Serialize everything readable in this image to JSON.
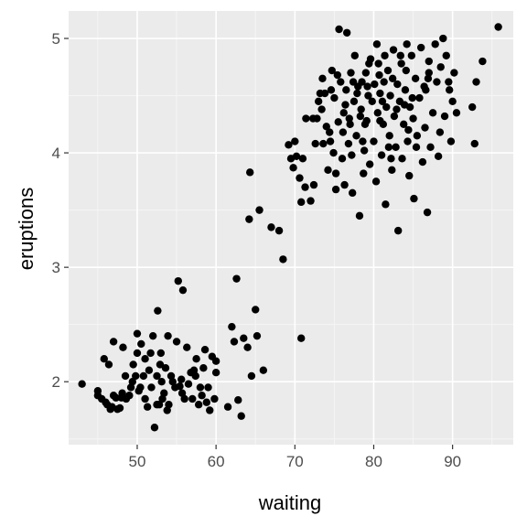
{
  "chart_data": {
    "type": "scatter",
    "xlabel": "waiting",
    "ylabel": "eruptions",
    "xlim": [
      41.3,
      97.7
    ],
    "ylim": [
      1.45,
      5.24
    ],
    "x_ticks": [
      50,
      60,
      70,
      80,
      90
    ],
    "x_tick_labels": [
      "50",
      "60",
      "70",
      "80",
      "90"
    ],
    "y_ticks": [
      2,
      3,
      4,
      5
    ],
    "y_tick_labels": [
      "2",
      "3",
      "4",
      "5"
    ],
    "grid": true,
    "legend": "none",
    "colors": {
      "panel_background": "#ebebeb",
      "grid_major": "#ffffff",
      "grid_minor": "#f5f5f5",
      "point": "#000000",
      "tick_mark": "#333333"
    },
    "points": [
      [
        43,
        1.98
      ],
      [
        45,
        1.92
      ],
      [
        45,
        1.88
      ],
      [
        45.5,
        1.85
      ],
      [
        45.8,
        2.2
      ],
      [
        46,
        1.82
      ],
      [
        46.2,
        1.8
      ],
      [
        46.4,
        2.15
      ],
      [
        46.8,
        1.78
      ],
      [
        47,
        1.88
      ],
      [
        47,
        2.35
      ],
      [
        47.3,
        1.86
      ],
      [
        47.5,
        1.76
      ],
      [
        47.8,
        1.77
      ],
      [
        48,
        1.86
      ],
      [
        48.2,
        2.3
      ],
      [
        48.5,
        2.05
      ],
      [
        48.6,
        1.85
      ],
      [
        49,
        1.88
      ],
      [
        49.2,
        1.95
      ],
      [
        49.5,
        2.15
      ],
      [
        49.8,
        2.05
      ],
      [
        50,
        2.25
      ],
      [
        50,
        2.42
      ],
      [
        50.2,
        1.92
      ],
      [
        50.5,
        2.33
      ],
      [
        50.8,
        2.05
      ],
      [
        51,
        1.85
      ],
      [
        51,
        2.2
      ],
      [
        51.3,
        1.78
      ],
      [
        51.5,
        2.1
      ],
      [
        51.8,
        1.95
      ],
      [
        52,
        2.4
      ],
      [
        52.2,
        1.6
      ],
      [
        52.5,
        1.8
      ],
      [
        52.5,
        2.05
      ],
      [
        52.6,
        2.62
      ],
      [
        52.8,
        1.8
      ],
      [
        53,
        2.25
      ],
      [
        53.2,
        1.85
      ],
      [
        53.4,
        1.9
      ],
      [
        53.6,
        2.12
      ],
      [
        53.8,
        1.75
      ],
      [
        53.9,
        2.4
      ],
      [
        54,
        1.8
      ],
      [
        54.3,
        2.05
      ],
      [
        54.5,
        2.0
      ],
      [
        54.8,
        1.95
      ],
      [
        55,
        2.35
      ],
      [
        55.2,
        2.88
      ],
      [
        55.4,
        1.96
      ],
      [
        55.6,
        2.02
      ],
      [
        55.8,
        2.8
      ],
      [
        56,
        1.85
      ],
      [
        56.3,
        2.3
      ],
      [
        56.5,
        1.98
      ],
      [
        56.8,
        2.08
      ],
      [
        57,
        1.85
      ],
      [
        57.2,
        2.1
      ],
      [
        57.5,
        2.2
      ],
      [
        57.8,
        1.8
      ],
      [
        58,
        1.95
      ],
      [
        58.2,
        1.88
      ],
      [
        58.6,
        2.28
      ],
      [
        58.8,
        1.82
      ],
      [
        59,
        1.95
      ],
      [
        59.2,
        1.75
      ],
      [
        59.5,
        2.22
      ],
      [
        59.8,
        1.85
      ],
      [
        60,
        2.08
      ],
      [
        60,
        2.18
      ],
      [
        61.5,
        1.78
      ],
      [
        62,
        2.48
      ],
      [
        62.3,
        2.35
      ],
      [
        62.6,
        2.9
      ],
      [
        62.8,
        1.84
      ],
      [
        63.2,
        1.7
      ],
      [
        63.5,
        2.38
      ],
      [
        64,
        2.3
      ],
      [
        64.5,
        2.05
      ],
      [
        65,
        2.63
      ],
      [
        65.2,
        2.4
      ],
      [
        66,
        2.1
      ],
      [
        70.8,
        2.38
      ],
      [
        68.5,
        3.07
      ],
      [
        67,
        3.35
      ],
      [
        65.5,
        3.5
      ],
      [
        64.3,
        3.83
      ],
      [
        64.2,
        3.42
      ],
      [
        68,
        3.32
      ],
      [
        69.2,
        4.07
      ],
      [
        69.5,
        3.95
      ],
      [
        69.8,
        3.87
      ],
      [
        70,
        4.1
      ],
      [
        70.2,
        3.97
      ],
      [
        70.6,
        3.78
      ],
      [
        71,
        3.95
      ],
      [
        71.3,
        3.7
      ],
      [
        70.8,
        3.57
      ],
      [
        72,
        3.58
      ],
      [
        72.3,
        4.3
      ],
      [
        72.6,
        4.08
      ],
      [
        72.8,
        4.3
      ],
      [
        73,
        4.45
      ],
      [
        73.2,
        4.52
      ],
      [
        73.5,
        4.65
      ],
      [
        73.8,
        4.52
      ],
      [
        74,
        4.23
      ],
      [
        74.2,
        3.85
      ],
      [
        74.5,
        4.1
      ],
      [
        74.7,
        4.72
      ],
      [
        74.9,
        4.0
      ],
      [
        75,
        4.48
      ],
      [
        75.2,
        3.82
      ],
      [
        75.5,
        4.27
      ],
      [
        75.6,
        5.08
      ],
      [
        75.8,
        4.62
      ],
      [
        76,
        3.95
      ],
      [
        76.2,
        4.35
      ],
      [
        76.3,
        3.72
      ],
      [
        76.5,
        4.55
      ],
      [
        76.6,
        5.05
      ],
      [
        76.8,
        4.08
      ],
      [
        77,
        4.25
      ],
      [
        77.1,
        4.7
      ],
      [
        77.3,
        3.65
      ],
      [
        77.5,
        4.45
      ],
      [
        77.6,
        4.85
      ],
      [
        77.8,
        4.15
      ],
      [
        78,
        4.58
      ],
      [
        78.2,
        3.45
      ],
      [
        78.3,
        4.32
      ],
      [
        78.5,
        4.62
      ],
      [
        78.7,
        3.82
      ],
      [
        78.8,
        4.02
      ],
      [
        79,
        4.7
      ],
      [
        79.1,
        4.28
      ],
      [
        79.3,
        4.5
      ],
      [
        79.5,
        3.9
      ],
      [
        79.6,
        4.82
      ],
      [
        79.8,
        4.45
      ],
      [
        80,
        4.1
      ],
      [
        80.1,
        4.6
      ],
      [
        80.3,
        3.75
      ],
      [
        80.5,
        4.35
      ],
      [
        80.6,
        4.78
      ],
      [
        80.8,
        4.52
      ],
      [
        81,
        3.98
      ],
      [
        81.2,
        4.25
      ],
      [
        81.3,
        4.62
      ],
      [
        81.5,
        3.55
      ],
      [
        81.6,
        4.4
      ],
      [
        81.8,
        4.72
      ],
      [
        82,
        4.15
      ],
      [
        82.1,
        4.5
      ],
      [
        82.3,
        3.85
      ],
      [
        82.5,
        4.9
      ],
      [
        82.6,
        4.32
      ],
      [
        82.8,
        4.05
      ],
      [
        83,
        4.6
      ],
      [
        83.1,
        3.32
      ],
      [
        83.3,
        4.45
      ],
      [
        83.5,
        4.78
      ],
      [
        83.6,
        3.95
      ],
      [
        83.8,
        4.25
      ],
      [
        84,
        4.55
      ],
      [
        84.1,
        4.72
      ],
      [
        84.3,
        4.1
      ],
      [
        84.5,
        3.8
      ],
      [
        84.6,
        4.4
      ],
      [
        84.8,
        4.85
      ],
      [
        85,
        4.3
      ],
      [
        85.1,
        3.6
      ],
      [
        85.3,
        4.65
      ],
      [
        85.5,
        4.15
      ],
      [
        85.8,
        4.48
      ],
      [
        86,
        4.92
      ],
      [
        86.2,
        3.92
      ],
      [
        86.5,
        4.22
      ],
      [
        86.6,
        4.55
      ],
      [
        86.8,
        3.48
      ],
      [
        87,
        4.8
      ],
      [
        87.2,
        4.05
      ],
      [
        87.5,
        4.35
      ],
      [
        87.8,
        4.95
      ],
      [
        88,
        4.62
      ],
      [
        88.2,
        3.97
      ],
      [
        88.5,
        4.75
      ],
      [
        88.8,
        5.0
      ],
      [
        89,
        4.32
      ],
      [
        89.2,
        4.85
      ],
      [
        89.5,
        4.62
      ],
      [
        89.8,
        4.1
      ],
      [
        90,
        4.45
      ],
      [
        90.2,
        4.7
      ],
      [
        90.5,
        4.35
      ],
      [
        92.5,
        4.4
      ],
      [
        92.8,
        4.08
      ],
      [
        93,
        4.62
      ],
      [
        93.8,
        4.8
      ],
      [
        95.8,
        5.1
      ],
      [
        87,
        4.7
      ],
      [
        84.2,
        4.95
      ],
      [
        83.4,
        4.85
      ],
      [
        81.4,
        4.85
      ],
      [
        80.4,
        4.95
      ],
      [
        79.4,
        4.78
      ],
      [
        78.4,
        4.38
      ],
      [
        77.4,
        4.62
      ],
      [
        76.4,
        4.42
      ],
      [
        75.4,
        4.68
      ],
      [
        74.4,
        4.18
      ],
      [
        73.4,
        4.38
      ],
      [
        72.4,
        3.72
      ],
      [
        71.4,
        4.3
      ],
      [
        75.2,
        3.68
      ],
      [
        76.1,
        4.18
      ],
      [
        77.2,
        3.98
      ],
      [
        78.6,
        4.1
      ],
      [
        80.8,
        4.28
      ],
      [
        82.4,
        4.65
      ],
      [
        84.4,
        4.2
      ],
      [
        85.4,
        4.05
      ],
      [
        86.4,
        4.58
      ],
      [
        88.4,
        4.18
      ],
      [
        89.6,
        4.55
      ],
      [
        81.1,
        4.45
      ],
      [
        79.2,
        4.58
      ],
      [
        77.9,
        4.52
      ],
      [
        82.9,
        4.38
      ],
      [
        83.9,
        4.42
      ],
      [
        80.7,
        4.68
      ],
      [
        78.9,
        4.25
      ],
      [
        76.9,
        4.3
      ],
      [
        74.6,
        4.55
      ],
      [
        73.6,
        4.08
      ],
      [
        81.9,
        4.05
      ],
      [
        82.2,
        3.95
      ],
      [
        84.9,
        4.48
      ],
      [
        86.9,
        4.65
      ],
      [
        50.4,
        1.95
      ],
      [
        51.7,
        2.25
      ],
      [
        53.1,
        2.0
      ],
      [
        55.7,
        1.9
      ],
      [
        57.4,
        2.05
      ],
      [
        58.4,
        2.12
      ],
      [
        52.9,
        2.15
      ],
      [
        49.4,
        2.0
      ],
      [
        48.1,
        1.9
      ],
      [
        46.6,
        1.76
      ]
    ]
  }
}
